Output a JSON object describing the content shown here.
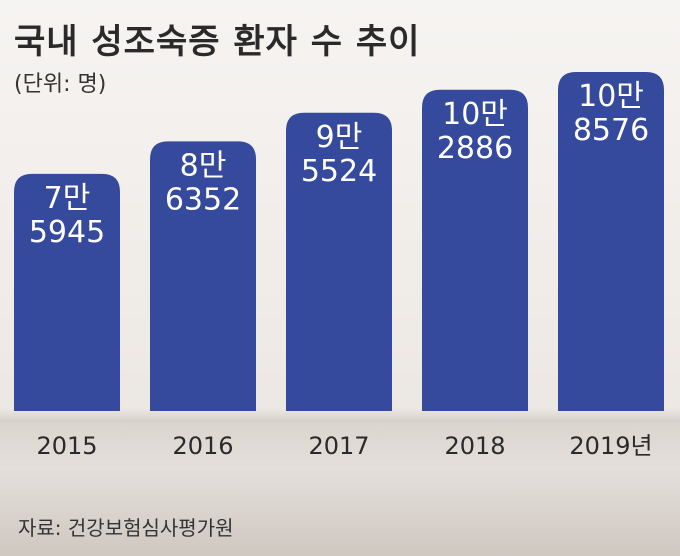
{
  "title": "국내 성조숙증 환자 수 추이",
  "unit_label": "(단위: 명)",
  "source": "자료: 건강보험심사평가원",
  "colors": {
    "bar": "#354a9c",
    "label_on_bar": "#ffffff",
    "tick": "#2a2a2a"
  },
  "chart_data": {
    "type": "bar",
    "title": "국내 성조숙증 환자 수 추이",
    "ylabel": "(단위: 명)",
    "xlabel": "",
    "categories": [
      "2015",
      "2016",
      "2017",
      "2018",
      "2019년"
    ],
    "values": [
      75945,
      86352,
      95524,
      102886,
      108576
    ],
    "data_labels": [
      [
        "7만",
        "5945"
      ],
      [
        "8만",
        "6352"
      ],
      [
        "9만",
        "5524"
      ],
      [
        "10만",
        "2886"
      ],
      [
        "10만",
        "8576"
      ]
    ],
    "ylim": [
      0,
      108576
    ],
    "grid": false,
    "legend": "none"
  }
}
